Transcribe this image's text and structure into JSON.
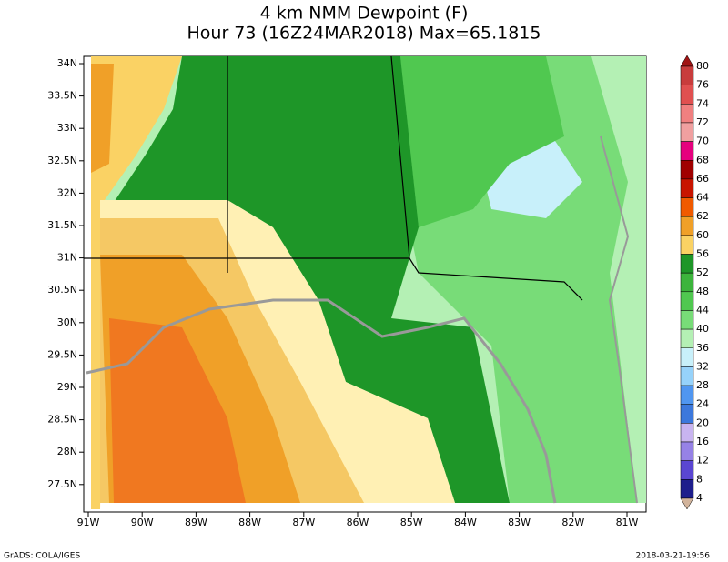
{
  "header": {
    "title": "4 km NMM Dewpoint (F)",
    "subtitle": "Hour 73 (16Z24MAR2018) Max=65.1815"
  },
  "map": {
    "lon_labels": [
      "91W",
      "90W",
      "89W",
      "88W",
      "87W",
      "86W",
      "85W",
      "84W",
      "83W",
      "82W",
      "81W"
    ],
    "lat_labels": [
      "34N",
      "33.5N",
      "33N",
      "32.5N",
      "32N",
      "31.5N",
      "31N",
      "30.5N",
      "30N",
      "29.5N",
      "29N",
      "28.5N",
      "28N",
      "27.5N"
    ]
  },
  "colorbar": {
    "labels": [
      "80",
      "76",
      "74",
      "72",
      "70",
      "68",
      "66",
      "64",
      "62",
      "60",
      "56",
      "52",
      "48",
      "44",
      "40",
      "36",
      "32",
      "28",
      "24",
      "20",
      "16",
      "12",
      "8",
      "4"
    ],
    "colors": [
      "#a01414",
      "#c83c3c",
      "#e05050",
      "#f08080",
      "#f0a0a0",
      "#e6007e",
      "#a00000",
      "#c81400",
      "#f05a00",
      "#f0a028",
      "#fad264",
      "#1e9628",
      "#3cb43c",
      "#50c850",
      "#78dc78",
      "#b4f0b4",
      "#c8f0fa",
      "#96d2fa",
      "#5096f0",
      "#3c78dc",
      "#c8b4f0",
      "#9682e6",
      "#5a46d2",
      "#1e1e8c",
      "#d2b49c"
    ]
  },
  "footer": {
    "left": "GrADS: COLA/IGES",
    "right": "2018-03-21-19:56"
  }
}
